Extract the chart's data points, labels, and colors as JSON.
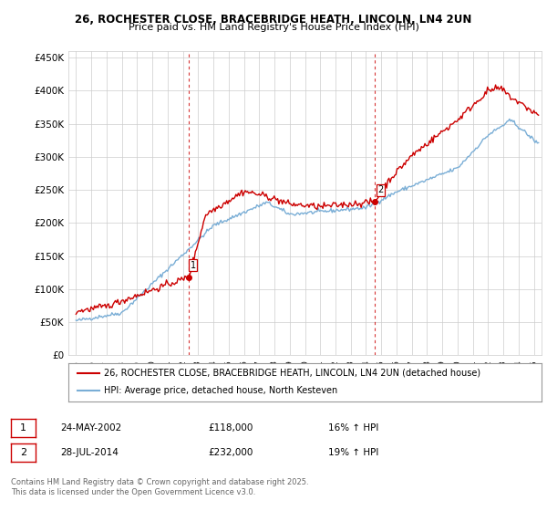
{
  "title1": "26, ROCHESTER CLOSE, BRACEBRIDGE HEATH, LINCOLN, LN4 2UN",
  "title2": "Price paid vs. HM Land Registry's House Price Index (HPI)",
  "legend_line1": "26, ROCHESTER CLOSE, BRACEBRIDGE HEATH, LINCOLN, LN4 2UN (detached house)",
  "legend_line2": "HPI: Average price, detached house, North Kesteven",
  "sale1_date": "24-MAY-2002",
  "sale1_price": "£118,000",
  "sale1_hpi": "16% ↑ HPI",
  "sale2_date": "28-JUL-2014",
  "sale2_price": "£232,000",
  "sale2_hpi": "19% ↑ HPI",
  "footnote": "Contains HM Land Registry data © Crown copyright and database right 2025.\nThis data is licensed under the Open Government Licence v3.0.",
  "sale1_year": 2002.38,
  "sale1_value": 118000,
  "sale2_year": 2014.57,
  "sale2_value": 232000,
  "red_color": "#cc0000",
  "blue_color": "#7aaed6",
  "vline_color": "#cc0000",
  "grid_color": "#cccccc",
  "bg_color": "#ffffff",
  "ylim_min": 0,
  "ylim_max": 460000,
  "xlim_min": 1994.5,
  "xlim_max": 2025.5
}
